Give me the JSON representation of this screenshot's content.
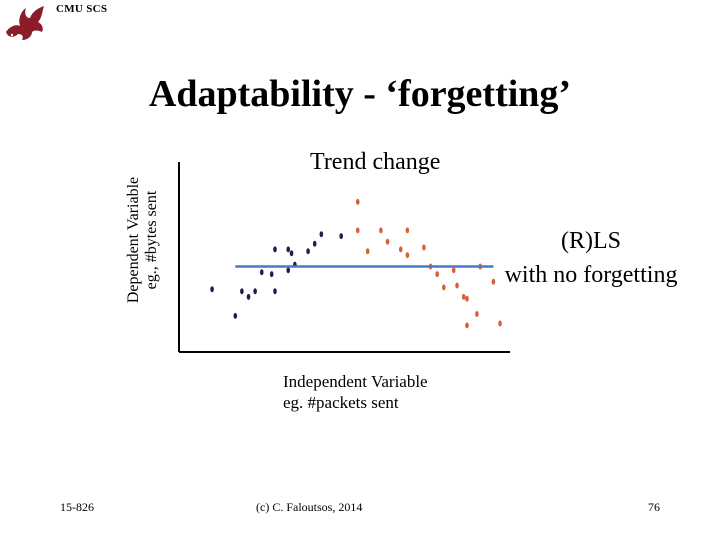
{
  "header": {
    "org_label": "CMU SCS",
    "logo_icon": "dragon-logo-icon"
  },
  "slide": {
    "title": "Adaptability - ‘forgetting’"
  },
  "chart_data": {
    "type": "scatter",
    "ylabel_line1": "Dependent Variable",
    "ylabel_line2": "eg., #bytes sent",
    "xlabel_line1": "Independent Variable",
    "xlabel_line2": "eg. #packets sent",
    "annotation_trend": "Trend change",
    "annotation_rls_line1": "(R)LS",
    "annotation_rls_line2": "with no forgetting",
    "xlim": [
      0,
      100
    ],
    "ylim": [
      0,
      100
    ],
    "colors": {
      "axis": "#000000",
      "early": "#1a1f4f",
      "late": "#d95f38",
      "fit": "#4a78c9"
    },
    "series": [
      {
        "color": "#1a1f4f",
        "points": [
          [
            10,
            33
          ],
          [
            17,
            19
          ],
          [
            19,
            32
          ],
          [
            21,
            29
          ],
          [
            25,
            42
          ],
          [
            23,
            32
          ],
          [
            29,
            54
          ],
          [
            29,
            32
          ],
          [
            33,
            54
          ],
          [
            34,
            52
          ],
          [
            35,
            46
          ],
          [
            39,
            53
          ],
          [
            41,
            57
          ],
          [
            43,
            62
          ],
          [
            49,
            61
          ],
          [
            33,
            43
          ],
          [
            28,
            41
          ]
        ]
      },
      {
        "color": "#d95f38",
        "points": [
          [
            54,
            79
          ],
          [
            54,
            64
          ],
          [
            57,
            53
          ],
          [
            61,
            64
          ],
          [
            63,
            58
          ],
          [
            67,
            54
          ],
          [
            69,
            64
          ],
          [
            69,
            51
          ],
          [
            74,
            55
          ],
          [
            76,
            45
          ],
          [
            78,
            41
          ],
          [
            80,
            34
          ],
          [
            83,
            43
          ],
          [
            84,
            35
          ],
          [
            87,
            28
          ],
          [
            90,
            20
          ],
          [
            91,
            45
          ],
          [
            95,
            37
          ],
          [
            97,
            15
          ],
          [
            87,
            14
          ],
          [
            86,
            29
          ]
        ]
      }
    ],
    "fit_line": {
      "x": [
        17,
        95
      ],
      "y": [
        45,
        45
      ]
    }
  },
  "footer": {
    "course": "15-826",
    "copyright": "(c) C. Faloutsos, 2014",
    "page": "76"
  }
}
